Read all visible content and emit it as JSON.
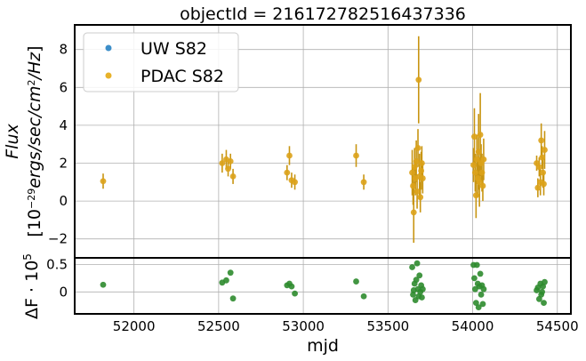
{
  "chart_data": [
    {
      "type": "scatter",
      "panel": "flux",
      "title": "objectId = 216172782516437336",
      "ylabel_line1": "Flux",
      "ylabel_line2": "[10^-29 ergs/sec/cm^2/Hz]",
      "xlim": [
        51650,
        54580
      ],
      "ylim": [
        -3.0,
        9.3
      ],
      "yticks": [
        -2,
        0,
        2,
        4,
        6,
        8
      ],
      "grid": true,
      "legend_position": "top-left",
      "legend": [
        {
          "label": "UW S82",
          "color": "#3d8ec9"
        },
        {
          "label": "PDAC S82",
          "color": "#e8b22a"
        }
      ],
      "series": [
        {
          "name": "PDAC S82",
          "color": "#dba21a",
          "errcolor": "#c89512",
          "points": [
            [
              51818,
              1.05,
              0.4
            ],
            [
              52521,
              2.0,
              0.5
            ],
            [
              52545,
              2.2,
              0.5
            ],
            [
              52556,
              1.7,
              0.4
            ],
            [
              52570,
              2.1,
              0.4
            ],
            [
              52585,
              1.3,
              0.4
            ],
            [
              52904,
              1.5,
              0.4
            ],
            [
              52918,
              2.4,
              0.5
            ],
            [
              52931,
              1.1,
              0.4
            ],
            [
              52950,
              1.0,
              0.4
            ],
            [
              53312,
              2.4,
              0.6
            ],
            [
              53357,
              1.0,
              0.4
            ],
            [
              53643,
              1.5,
              1.2
            ],
            [
              53648,
              0.8,
              1.0
            ],
            [
              53652,
              -0.6,
              1.6
            ],
            [
              53657,
              1.8,
              1.0
            ],
            [
              53662,
              1.2,
              0.9
            ],
            [
              53667,
              2.1,
              1.1
            ],
            [
              53672,
              0.5,
              0.9
            ],
            [
              53677,
              2.8,
              1.0
            ],
            [
              53681,
              6.4,
              2.3
            ],
            [
              53686,
              1.3,
              1.2
            ],
            [
              53691,
              0.2,
              0.8
            ],
            [
              53696,
              1.6,
              1.0
            ],
            [
              53700,
              2.0,
              0.9
            ],
            [
              53705,
              1.2,
              0.8
            ],
            [
              54005,
              1.9,
              0.9
            ],
            [
              54010,
              3.4,
              1.5
            ],
            [
              54015,
              1.5,
              1.0
            ],
            [
              54020,
              0.3,
              1.2
            ],
            [
              54025,
              2.2,
              1.3
            ],
            [
              54030,
              1.2,
              1.0
            ],
            [
              54035,
              2.6,
              2.0
            ],
            [
              54040,
              1.0,
              1.3
            ],
            [
              54045,
              3.5,
              2.2
            ],
            [
              54050,
              2.0,
              1.0
            ],
            [
              54055,
              1.5,
              1.0
            ],
            [
              54060,
              0.8,
              0.8
            ],
            [
              54065,
              2.2,
              1.1
            ],
            [
              54378,
              2.0,
              0.4
            ],
            [
              54385,
              0.7,
              0.5
            ],
            [
              54393,
              1.8,
              0.5
            ],
            [
              54400,
              1.0,
              0.7
            ],
            [
              54405,
              3.2,
              0.9
            ],
            [
              54410,
              2.3,
              0.6
            ],
            [
              54415,
              1.5,
              0.8
            ],
            [
              54420,
              0.9,
              0.6
            ],
            [
              54425,
              2.7,
              1.0
            ]
          ]
        }
      ]
    },
    {
      "type": "scatter",
      "panel": "difference",
      "ylabel": "ΔF · 10^5",
      "xlabel": "mjd",
      "xlim": [
        51650,
        54580
      ],
      "ylim": [
        -0.4,
        0.62
      ],
      "yticks": [
        0.0,
        0.5
      ],
      "xticks": [
        52000,
        52500,
        53000,
        53500,
        54000,
        54500
      ],
      "grid": true,
      "series": [
        {
          "name": "",
          "color": "#2e8b2e",
          "points": [
            [
              51818,
              0.13
            ],
            [
              52521,
              0.17
            ],
            [
              52545,
              0.21
            ],
            [
              52570,
              0.35
            ],
            [
              52585,
              -0.12
            ],
            [
              52904,
              0.12
            ],
            [
              52918,
              0.15
            ],
            [
              52931,
              0.1
            ],
            [
              52950,
              -0.03
            ],
            [
              53312,
              0.19
            ],
            [
              53357,
              -0.08
            ],
            [
              53643,
              0.45
            ],
            [
              53648,
              -0.05
            ],
            [
              53652,
              0.03
            ],
            [
              53657,
              0.15
            ],
            [
              53662,
              -0.15
            ],
            [
              53667,
              0.22
            ],
            [
              53672,
              0.52
            ],
            [
              53677,
              0.05
            ],
            [
              53681,
              -0.08
            ],
            [
              53686,
              0.3
            ],
            [
              53691,
              0.0
            ],
            [
              53696,
              0.12
            ],
            [
              53700,
              -0.1
            ],
            [
              53705,
              0.05
            ],
            [
              54005,
              0.49
            ],
            [
              54010,
              0.25
            ],
            [
              54015,
              0.05
            ],
            [
              54020,
              -0.2
            ],
            [
              54025,
              0.49
            ],
            [
              54030,
              0.15
            ],
            [
              54035,
              -0.28
            ],
            [
              54040,
              0.1
            ],
            [
              54045,
              0.33
            ],
            [
              54050,
              -0.05
            ],
            [
              54055,
              0.12
            ],
            [
              54060,
              -0.22
            ],
            [
              54065,
              0.05
            ],
            [
              54378,
              0.03
            ],
            [
              54385,
              0.08
            ],
            [
              54393,
              -0.13
            ],
            [
              54400,
              0.15
            ],
            [
              54405,
              -0.05
            ],
            [
              54410,
              0.0
            ],
            [
              54415,
              0.1
            ],
            [
              54420,
              -0.2
            ],
            [
              54425,
              0.18
            ]
          ]
        }
      ]
    }
  ]
}
